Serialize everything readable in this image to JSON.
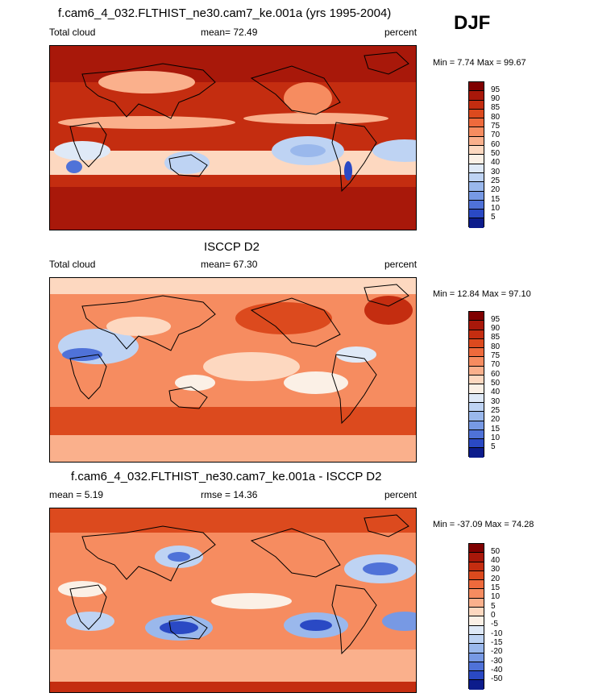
{
  "season": "DJF",
  "panels": [
    {
      "title": "f.cam6_4_032.FLTHIST_ne30.cam7_ke.001a (yrs 1995-2004)",
      "left_label": "Total cloud",
      "center_label": "mean=  72.49",
      "right_label": "percent",
      "minmax": "Min =  7.74 Max =  99.67",
      "colorbar_labels": [
        "95",
        "90",
        "85",
        "80",
        "75",
        "70",
        "60",
        "50",
        "40",
        "30",
        "25",
        "20",
        "15",
        "10",
        "5"
      ]
    },
    {
      "title": "ISCCP D2",
      "left_label": "Total cloud",
      "center_label": "mean=  67.30",
      "right_label": "percent",
      "minmax": "Min = 12.84 Max =  97.10",
      "colorbar_labels": [
        "95",
        "90",
        "85",
        "80",
        "75",
        "70",
        "60",
        "50",
        "40",
        "30",
        "25",
        "20",
        "15",
        "10",
        "5"
      ]
    },
    {
      "title": "f.cam6_4_032.FLTHIST_ne30.cam7_ke.001a - ISCCP D2",
      "left_label": "mean =  5.19",
      "center_label": "rmse =  14.36",
      "right_label": "percent",
      "minmax": "Min = -37.09 Max =  74.28",
      "colorbar_labels": [
        "50",
        "40",
        "30",
        "20",
        "15",
        "10",
        "5",
        "0",
        "-5",
        "-10",
        "-15",
        "-20",
        "-30",
        "-40",
        "-50"
      ]
    }
  ],
  "colors": {
    "levels": [
      "#7f0000",
      "#a8180a",
      "#c42d10",
      "#dc4a1e",
      "#ee6a3c",
      "#f68c60",
      "#fab08c",
      "#fdd8c0",
      "#fbf0e6",
      "#dfe9f7",
      "#bed3f3",
      "#9ab8ec",
      "#7799e4",
      "#4f72d8",
      "#2a49c4",
      "#0c1c8c"
    ],
    "ocean_base": "#c42d10",
    "land_outline": "#000000"
  }
}
